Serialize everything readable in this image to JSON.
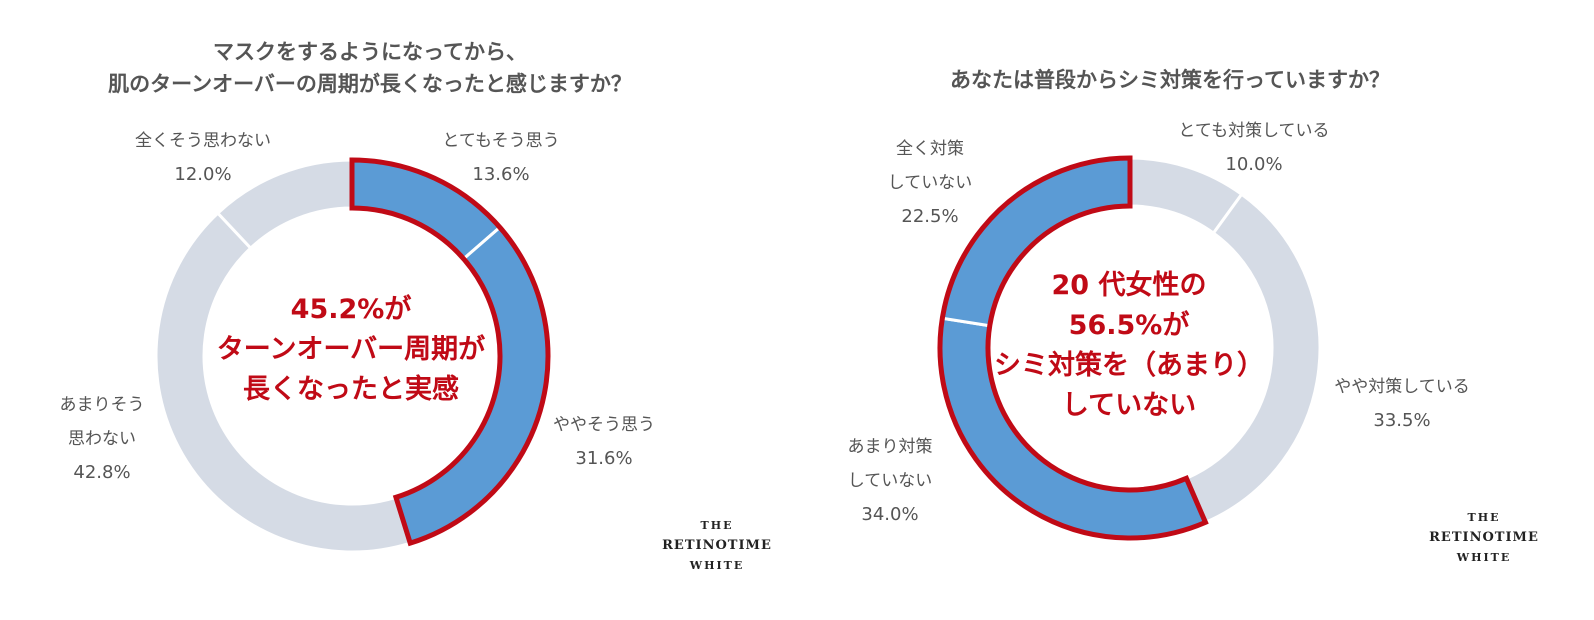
{
  "chart_data": [
    {
      "type": "pie",
      "title_lines": [
        "マスクをするようになってから、",
        "肌のターンオーバーの周期が長くなったと感じますか？"
      ],
      "slices": [
        {
          "label_lines": [
            "とてもそう思う"
          ],
          "value": 13.6,
          "value_label": "13.6%",
          "highlighted": true
        },
        {
          "label_lines": [
            "ややそう思う"
          ],
          "value": 31.6,
          "value_label": "31.6%",
          "highlighted": true
        },
        {
          "label_lines": [
            "あまりそう",
            "思わない"
          ],
          "value": 42.8,
          "value_label": "42.8%",
          "highlighted": false
        },
        {
          "label_lines": [
            "全くそう思わない"
          ],
          "value": 12.0,
          "value_label": "12.0%",
          "highlighted": false
        }
      ],
      "start": "top",
      "direction": "clockwise",
      "center_text": [
        "45.2%が",
        "ターンオーバー周期が",
        "長くなったと実感"
      ]
    },
    {
      "type": "pie",
      "title_lines": [
        "あなたは普段からシミ対策を行っていますか？"
      ],
      "slices": [
        {
          "label_lines": [
            "とても対策している"
          ],
          "value": 10.0,
          "value_label": "10.0%",
          "highlighted": false
        },
        {
          "label_lines": [
            "やや対策している"
          ],
          "value": 33.5,
          "value_label": "33.5%",
          "highlighted": false
        },
        {
          "label_lines": [
            "あまり対策",
            "していない"
          ],
          "value": 34.0,
          "value_label": "34.0%",
          "highlighted": true
        },
        {
          "label_lines": [
            "全く対策",
            "していない"
          ],
          "value": 22.5,
          "value_label": "22.5%",
          "highlighted": true
        }
      ],
      "start": "top",
      "direction": "clockwise",
      "center_text": [
        "20 代女性の",
        "56.5%が",
        "シミ対策を（あまり）",
        "していない"
      ]
    }
  ],
  "colors": {
    "highlight_fill": "#5b9bd5",
    "highlight_outline": "#c00a16",
    "other_fill": "#d5dbe5",
    "center_text": "#c00a16"
  },
  "brand": {
    "line1": "THE",
    "line2": "RETINOTIME",
    "line3": "WHITE"
  }
}
